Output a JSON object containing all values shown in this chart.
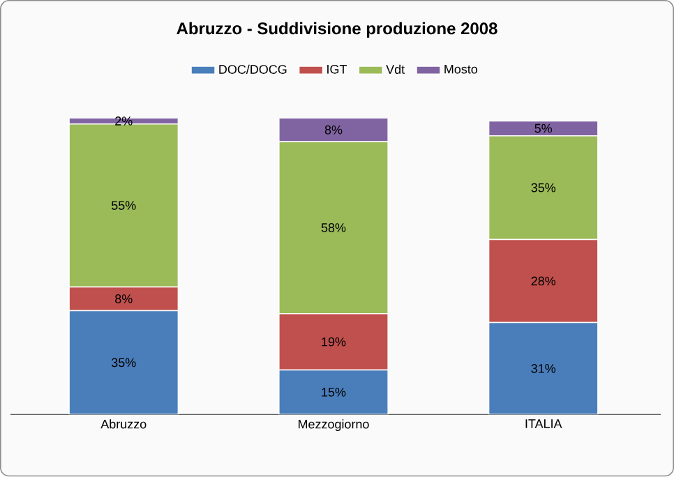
{
  "chart_data": {
    "type": "bar",
    "title": "Abruzzo - Suddivisione produzione 2008",
    "categories": [
      "Abruzzo",
      "Mezzogiorno",
      "ITALIA"
    ],
    "stacked": true,
    "legend": "top",
    "series": [
      {
        "name": "DOC/DOCG",
        "color": "#4a7ebb",
        "values": [
          35,
          15,
          31
        ],
        "value_labels": [
          "35%",
          "15%",
          "31%"
        ]
      },
      {
        "name": "IGT",
        "color": "#c0504d",
        "values": [
          8,
          19,
          28
        ],
        "value_labels": [
          "8%",
          "19%",
          "28%"
        ]
      },
      {
        "name": "Vdt",
        "color": "#9bbb59",
        "values": [
          55,
          58,
          35
        ],
        "value_labels": [
          "55%",
          "58%",
          "35%"
        ]
      },
      {
        "name": "Mosto",
        "color": "#8064a2",
        "values": [
          2,
          8,
          5
        ],
        "value_labels": [
          "2%",
          "8%",
          "5%"
        ]
      }
    ]
  }
}
